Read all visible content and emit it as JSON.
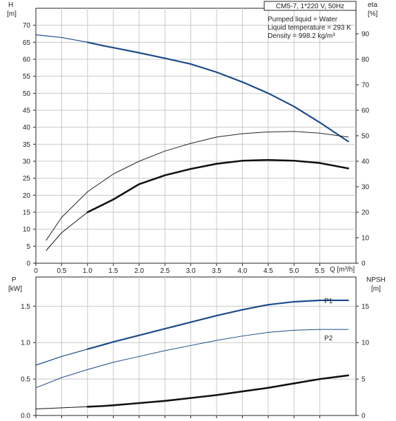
{
  "chart_data": [
    {
      "type": "line",
      "title": "CM5-7, 1*220 V, 50Hz",
      "info": [
        "Pumped liquid = Water",
        "Liquid temperature = 293 K",
        "Density = 998.2 kg/m³"
      ],
      "x_axis": {
        "label": "Q [m³/h]",
        "range": [
          0,
          6.2
        ],
        "ticks": [
          0,
          0.5,
          1.0,
          1.5,
          2.0,
          2.5,
          3.0,
          3.5,
          4.0,
          4.5,
          5.0,
          5.5
        ]
      },
      "y_left": {
        "label_top": "H",
        "label_unit": "[m]",
        "range": [
          0,
          75
        ],
        "ticks": [
          0,
          5,
          10,
          15,
          20,
          25,
          30,
          35,
          40,
          45,
          50,
          55,
          60,
          65,
          70
        ]
      },
      "y_right": {
        "label_top": "eta",
        "label_unit": "[%]",
        "range": [
          0,
          100
        ],
        "ticks": [
          0,
          10,
          20,
          30,
          40,
          50,
          60,
          70,
          80,
          90
        ]
      },
      "series": [
        {
          "axis": "left",
          "color": "#1a4a8a",
          "x": [
            0,
            0.5,
            1.0,
            1.3,
            1.5,
            2.0,
            2.5,
            3.0,
            3.5,
            4.0,
            4.5,
            5.0,
            5.5,
            6.05
          ],
          "y": [
            67.2,
            66.4,
            65.0,
            64.0,
            63.4,
            61.9,
            60.3,
            58.6,
            56.2,
            53.3,
            50.0,
            46.1,
            41.4,
            35.8
          ],
          "weight": [
            1.2,
            1.2,
            1.2,
            2.2,
            2.2,
            2.2,
            2.2,
            2.2,
            2.2,
            2.2,
            2.2,
            2.2,
            2.2,
            2.2
          ]
        },
        {
          "axis": "right",
          "color": "#222222",
          "x": [
            0.2,
            0.5,
            1.0,
            1.5,
            2.0,
            2.5,
            3.0,
            3.5,
            4.0,
            4.5,
            5.0,
            5.5,
            6.05
          ],
          "y": [
            9,
            18,
            28,
            35,
            40,
            44,
            47,
            49.5,
            50.8,
            51.5,
            51.7,
            51.0,
            49.5
          ],
          "weight": [
            1,
            1,
            1,
            1,
            1,
            1,
            1,
            1,
            1,
            1,
            1,
            1,
            1
          ]
        },
        {
          "axis": "right",
          "color": "#111111",
          "x": [
            0.2,
            0.5,
            1.0,
            1.3,
            1.5,
            2.0,
            2.5,
            3.0,
            3.5,
            4.0,
            4.5,
            5.0,
            5.5,
            6.05
          ],
          "y": [
            5,
            12,
            20,
            23,
            25,
            31,
            34.5,
            37,
            39,
            40.2,
            40.5,
            40.2,
            39.3,
            37.2
          ],
          "weight": [
            1,
            1,
            1,
            2.6,
            2.6,
            2.6,
            2.6,
            2.6,
            2.6,
            2.6,
            2.6,
            2.6,
            2.6,
            2.6
          ]
        }
      ]
    },
    {
      "type": "line",
      "x_axis": {
        "range": [
          0,
          6.2
        ],
        "ticks": [
          0,
          0.5,
          1.0,
          1.5,
          2.0,
          2.5,
          3.0,
          3.5,
          4.0,
          4.5,
          5.0,
          5.5
        ]
      },
      "y_left": {
        "label_top": "P",
        "label_unit": "[kW]",
        "range": [
          0,
          1.9
        ],
        "ticks": [
          "0.0",
          "0.5",
          "1.0",
          "1.5"
        ]
      },
      "y_right": {
        "label_top": "NPSH",
        "label_unit": "[m]",
        "range": [
          0,
          19
        ],
        "ticks": [
          "0",
          "5",
          "10",
          "15"
        ]
      },
      "series": [
        {
          "name": "P1",
          "axis": "left",
          "color": "#1a4a8a",
          "x": [
            0,
            0.5,
            1.0,
            1.3,
            1.5,
            2.0,
            2.5,
            3.0,
            3.5,
            4.0,
            4.5,
            5.0,
            5.5,
            6.05
          ],
          "y": [
            0.69,
            0.81,
            0.91,
            0.97,
            1.01,
            1.1,
            1.19,
            1.28,
            1.37,
            1.45,
            1.52,
            1.56,
            1.58,
            1.58
          ],
          "weight": [
            1.2,
            1.2,
            1.2,
            2.2,
            2.2,
            2.2,
            2.2,
            2.2,
            2.2,
            2.2,
            2.2,
            2.2,
            2.2,
            2.2
          ]
        },
        {
          "name": "P2",
          "axis": "left",
          "color": "#1a4a8a",
          "x": [
            0,
            0.5,
            1.0,
            1.5,
            2.0,
            2.5,
            3.0,
            3.5,
            4.0,
            4.5,
            5.0,
            5.5,
            6.05
          ],
          "y": [
            0.38,
            0.52,
            0.63,
            0.73,
            0.81,
            0.89,
            0.96,
            1.03,
            1.09,
            1.14,
            1.17,
            1.18,
            1.18
          ],
          "weight": [
            1,
            1,
            1,
            1,
            1,
            1,
            1,
            1,
            1,
            1,
            1,
            1,
            1
          ]
        },
        {
          "name": "",
          "axis": "right",
          "color": "#111111",
          "x": [
            0,
            0.5,
            1.0,
            1.3,
            1.5,
            2.0,
            2.5,
            3.0,
            3.5,
            4.0,
            4.5,
            5.0,
            5.5,
            6.05
          ],
          "y": [
            0.9,
            1.05,
            1.2,
            1.3,
            1.4,
            1.7,
            2.0,
            2.4,
            2.8,
            3.3,
            3.8,
            4.4,
            5.0,
            5.5
          ],
          "weight": [
            1,
            1,
            1,
            2.6,
            2.6,
            2.6,
            2.6,
            2.6,
            2.6,
            2.6,
            2.6,
            2.6,
            2.6,
            2.6
          ]
        }
      ]
    }
  ]
}
